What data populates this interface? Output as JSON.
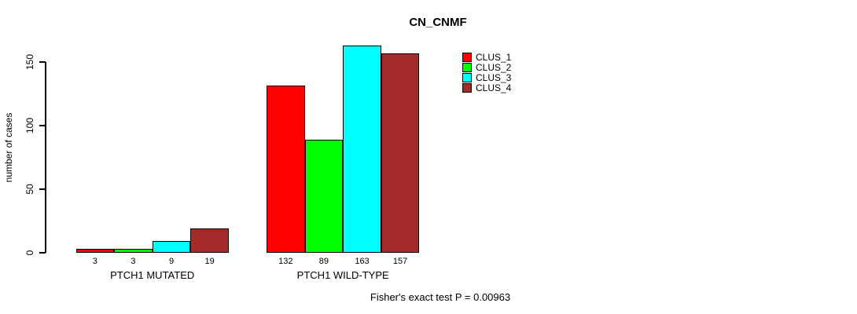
{
  "chart_data": {
    "type": "bar",
    "title": "CN_CNMF",
    "xlabel": "",
    "ylabel": "number of cases",
    "categories": [
      "PTCH1 MUTATED",
      "PTCH1 WILD-TYPE"
    ],
    "series": [
      {
        "name": "CLUS_1",
        "color": "#ff0000",
        "values": [
          3,
          132
        ]
      },
      {
        "name": "CLUS_2",
        "color": "#00ff00",
        "values": [
          3,
          89
        ]
      },
      {
        "name": "CLUS_3",
        "color": "#00ffff",
        "values": [
          9,
          163
        ]
      },
      {
        "name": "CLUS_4",
        "color": "#a52a2a",
        "values": [
          19,
          157
        ]
      }
    ],
    "bar_value_labels": [
      [
        3,
        3,
        9,
        19
      ],
      [
        132,
        89,
        163,
        157
      ]
    ],
    "ylim": [
      0,
      165
    ],
    "yticks": [
      0,
      50,
      100,
      150
    ],
    "grid": false,
    "legend_position": "top-right",
    "annotation": "Fisher's exact test P = 0.00963"
  }
}
